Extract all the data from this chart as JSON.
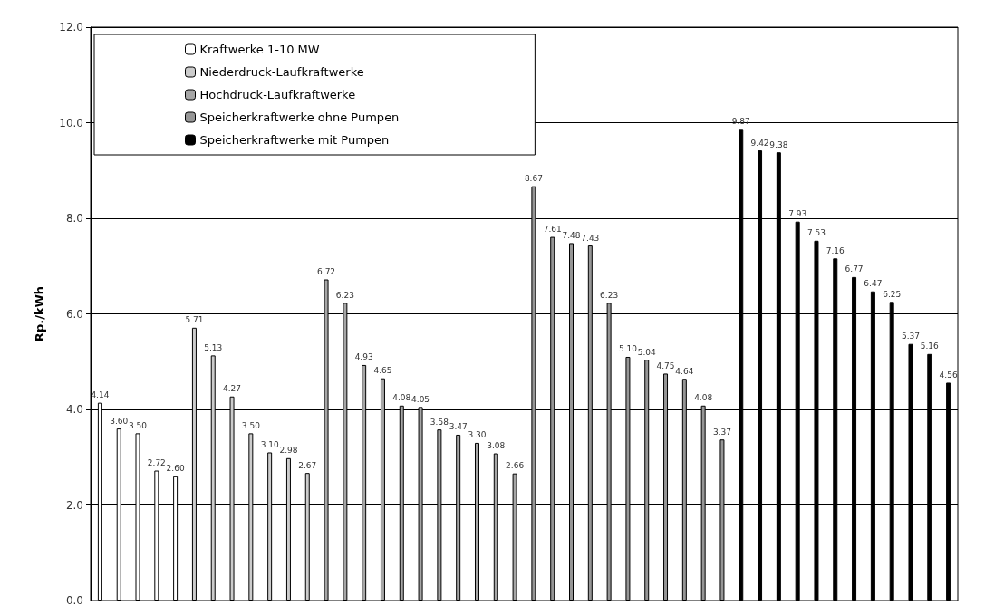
{
  "chart_data": {
    "type": "bar",
    "ylabel": "Rp./kWh",
    "categories": [
      null,
      null,
      null,
      null,
      null,
      null,
      null,
      null,
      null,
      null,
      null,
      null,
      null,
      null,
      null,
      null,
      null,
      null,
      null,
      null,
      null,
      null,
      null,
      null,
      null,
      null,
      null,
      null,
      null,
      null,
      null,
      null,
      null,
      null,
      null,
      null,
      null,
      null,
      null,
      null,
      null,
      null,
      null,
      null,
      null,
      null
    ],
    "series": [
      {
        "name": "Kraftwerke 1-10 MW",
        "color": "#ffffff",
        "values": [
          4.14,
          3.6,
          3.5,
          2.72,
          2.6,
          null,
          null,
          null,
          null,
          null,
          null,
          null,
          null,
          null,
          null,
          null,
          null,
          null,
          null,
          null,
          null,
          null,
          null,
          null,
          null,
          null,
          null,
          null,
          null,
          null,
          null,
          null,
          null,
          null,
          null,
          null,
          null,
          null,
          null,
          null,
          null,
          null,
          null,
          null,
          null,
          null
        ],
        "value_labels": [
          "4.14",
          "3.60",
          "3.50",
          "2.72",
          "2.60",
          null,
          null,
          null,
          null,
          null,
          null,
          null,
          null,
          null,
          null,
          null,
          null,
          null,
          null,
          null,
          null,
          null,
          null,
          null,
          null,
          null,
          null,
          null,
          null,
          null,
          null,
          null,
          null,
          null,
          null,
          null,
          null,
          null,
          null,
          null,
          null,
          null,
          null,
          null,
          null,
          null
        ]
      },
      {
        "name": "Niederdruck-Laufkraftwerke",
        "color": "#cccccc",
        "values": [
          null,
          null,
          null,
          null,
          null,
          5.71,
          5.13,
          4.27,
          3.5,
          3.1,
          2.98,
          2.67,
          null,
          null,
          null,
          null,
          null,
          null,
          null,
          null,
          null,
          null,
          null,
          null,
          null,
          null,
          null,
          null,
          null,
          null,
          null,
          null,
          null,
          null,
          null,
          null,
          null,
          null,
          null,
          null,
          null,
          null,
          null,
          null,
          null,
          null
        ],
        "value_labels": [
          null,
          null,
          null,
          null,
          null,
          "5.71",
          "5.13",
          "4.27",
          "3.50",
          "3.10",
          "2.98",
          "2.67",
          null,
          null,
          null,
          null,
          null,
          null,
          null,
          null,
          null,
          null,
          null,
          null,
          null,
          null,
          null,
          null,
          null,
          null,
          null,
          null,
          null,
          null,
          null,
          null,
          null,
          null,
          null,
          null,
          null,
          null,
          null,
          null,
          null,
          null
        ]
      },
      {
        "name": "Hochdruck-Laufkraftwerke",
        "color": "#a6a6a6",
        "values": [
          null,
          null,
          null,
          null,
          null,
          null,
          null,
          null,
          null,
          null,
          null,
          null,
          6.72,
          6.23,
          4.93,
          4.65,
          4.08,
          4.05,
          3.58,
          3.47,
          3.3,
          3.08,
          2.66,
          null,
          null,
          null,
          null,
          null,
          null,
          null,
          null,
          null,
          null,
          null,
          null,
          null,
          null,
          null,
          null,
          null,
          null,
          null,
          null,
          null,
          null,
          null
        ],
        "value_labels": [
          null,
          null,
          null,
          null,
          null,
          null,
          null,
          null,
          null,
          null,
          null,
          null,
          "6.72",
          "6.23",
          "4.93",
          "4.65",
          "4.08",
          "4.05",
          "3.58",
          "3.47",
          "3.30",
          "3.08",
          "2.66",
          null,
          null,
          null,
          null,
          null,
          null,
          null,
          null,
          null,
          null,
          null,
          null,
          null,
          null,
          null,
          null,
          null,
          null,
          null,
          null,
          null,
          null,
          null
        ]
      },
      {
        "name": "Speicherkraftwerke ohne Pumpen",
        "color": "#969696",
        "values": [
          null,
          null,
          null,
          null,
          null,
          null,
          null,
          null,
          null,
          null,
          null,
          null,
          null,
          null,
          null,
          null,
          null,
          null,
          null,
          null,
          null,
          null,
          null,
          8.67,
          7.61,
          7.48,
          7.43,
          6.23,
          5.1,
          5.04,
          4.75,
          4.64,
          4.08,
          3.37,
          null,
          null,
          null,
          null,
          null,
          null,
          null,
          null,
          null,
          null,
          null,
          null
        ],
        "value_labels": [
          null,
          null,
          null,
          null,
          null,
          null,
          null,
          null,
          null,
          null,
          null,
          null,
          null,
          null,
          null,
          null,
          null,
          null,
          null,
          null,
          null,
          null,
          null,
          "8.67",
          "7.61",
          "7.48",
          "7.43",
          "6.23",
          "5.10",
          "5.04",
          "4.75",
          "4.64",
          "4.08",
          "3.37",
          null,
          null,
          null,
          null,
          null,
          null,
          null,
          null,
          null,
          null,
          null,
          null
        ]
      },
      {
        "name": "Speicherkraftwerke mit Pumpen",
        "color": "#000000",
        "values": [
          null,
          null,
          null,
          null,
          null,
          null,
          null,
          null,
          null,
          null,
          null,
          null,
          null,
          null,
          null,
          null,
          null,
          null,
          null,
          null,
          null,
          null,
          null,
          null,
          null,
          null,
          null,
          null,
          null,
          null,
          null,
          null,
          null,
          null,
          9.87,
          9.42,
          9.38,
          7.93,
          7.53,
          7.16,
          6.77,
          6.47,
          6.25,
          5.37,
          5.16,
          4.56
        ],
        "value_labels": [
          null,
          null,
          null,
          null,
          null,
          null,
          null,
          null,
          null,
          null,
          null,
          null,
          null,
          null,
          null,
          null,
          null,
          null,
          null,
          null,
          null,
          null,
          null,
          null,
          null,
          null,
          null,
          null,
          null,
          null,
          null,
          null,
          null,
          null,
          "9.87",
          "9.42",
          "9.38",
          "7.93",
          "7.53",
          "7.16",
          "6.77",
          "6.47",
          "6.25",
          "5.37",
          "5.16",
          "4.56"
        ]
      }
    ],
    "ylim": [
      0,
      12
    ],
    "yticks": [
      {
        "value": 0,
        "label": "0.0"
      },
      {
        "value": 2,
        "label": "2.0"
      },
      {
        "value": 4,
        "label": "4.0"
      },
      {
        "value": 6,
        "label": "6.0"
      },
      {
        "value": 8,
        "label": "8.0"
      },
      {
        "value": 10,
        "label": "10.0"
      },
      {
        "value": 12,
        "label": "12.0"
      }
    ],
    "grid": "y",
    "legend": "top left"
  }
}
